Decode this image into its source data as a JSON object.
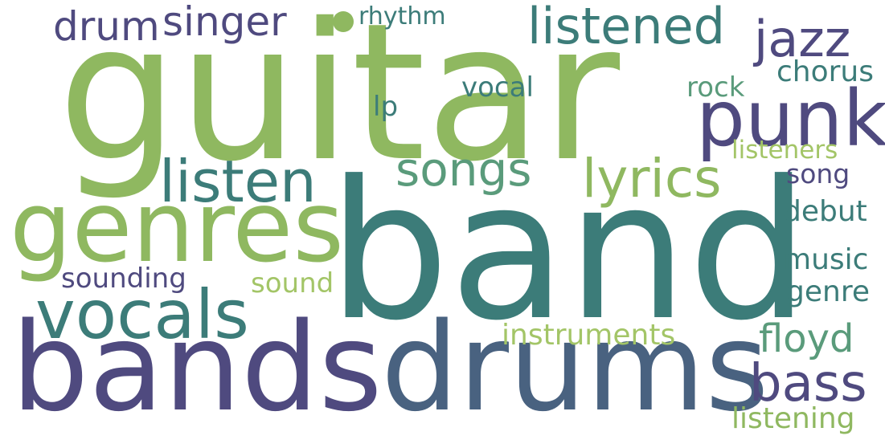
{
  "words": [
    {
      "id": "guitar",
      "text": "guitar",
      "color": "#8fb860"
    },
    {
      "id": "band",
      "text": "band",
      "color": "#3c7c79"
    },
    {
      "id": "bands",
      "text": "bands",
      "color": "#4f4a7f"
    },
    {
      "id": "drums",
      "text": "drums",
      "color": "#496280"
    },
    {
      "id": "genres",
      "text": "genres",
      "color": "#8fb860"
    },
    {
      "id": "punk",
      "text": "punk",
      "color": "#4f4a7f"
    },
    {
      "id": "vocals",
      "text": "vocals",
      "color": "#3c7c79"
    },
    {
      "id": "listen",
      "text": "listen",
      "color": "#3c7c79"
    },
    {
      "id": "lyrics",
      "text": "lyrics",
      "color": "#8fb860"
    },
    {
      "id": "songs",
      "text": "songs",
      "color": "#5a9b7b"
    },
    {
      "id": "listened",
      "text": "listened",
      "color": "#3c7c79"
    },
    {
      "id": "jazz",
      "text": "jazz",
      "color": "#4f4a7f"
    },
    {
      "id": "singer",
      "text": "singer",
      "color": "#4f4a7f"
    },
    {
      "id": "drum",
      "text": "drum",
      "color": "#4f4a7f"
    },
    {
      "id": "bass",
      "text": "bass",
      "color": "#4f4a7f"
    },
    {
      "id": "floyd",
      "text": "floyd",
      "color": "#5a9b7b"
    },
    {
      "id": "instruments",
      "text": "instruments",
      "color": "#a3c567"
    },
    {
      "id": "sounding",
      "text": "sounding",
      "color": "#4f4a7f"
    },
    {
      "id": "sound",
      "text": "sound",
      "color": "#a3c567"
    },
    {
      "id": "rhythm",
      "text": "rhythm",
      "color": "#3c7c79"
    },
    {
      "id": "vocal",
      "text": "vocal",
      "color": "#3c7c79"
    },
    {
      "id": "lp",
      "text": "lp",
      "color": "#3c7c79"
    },
    {
      "id": "rock",
      "text": "rock",
      "color": "#5a9b7b"
    },
    {
      "id": "chorus",
      "text": "chorus",
      "color": "#3c7c79"
    },
    {
      "id": "listeners",
      "text": "listeners",
      "color": "#a3c567"
    },
    {
      "id": "song",
      "text": "song",
      "color": "#4f4a7f"
    },
    {
      "id": "debut",
      "text": "debut",
      "color": "#3c7c79"
    },
    {
      "id": "music",
      "text": "music",
      "color": "#3c7c79"
    },
    {
      "id": "genre",
      "text": "genre",
      "color": "#3c7c79"
    },
    {
      "id": "listening",
      "text": "listening",
      "color": "#8fb860"
    }
  ],
  "dot_color": "#8fb860"
}
